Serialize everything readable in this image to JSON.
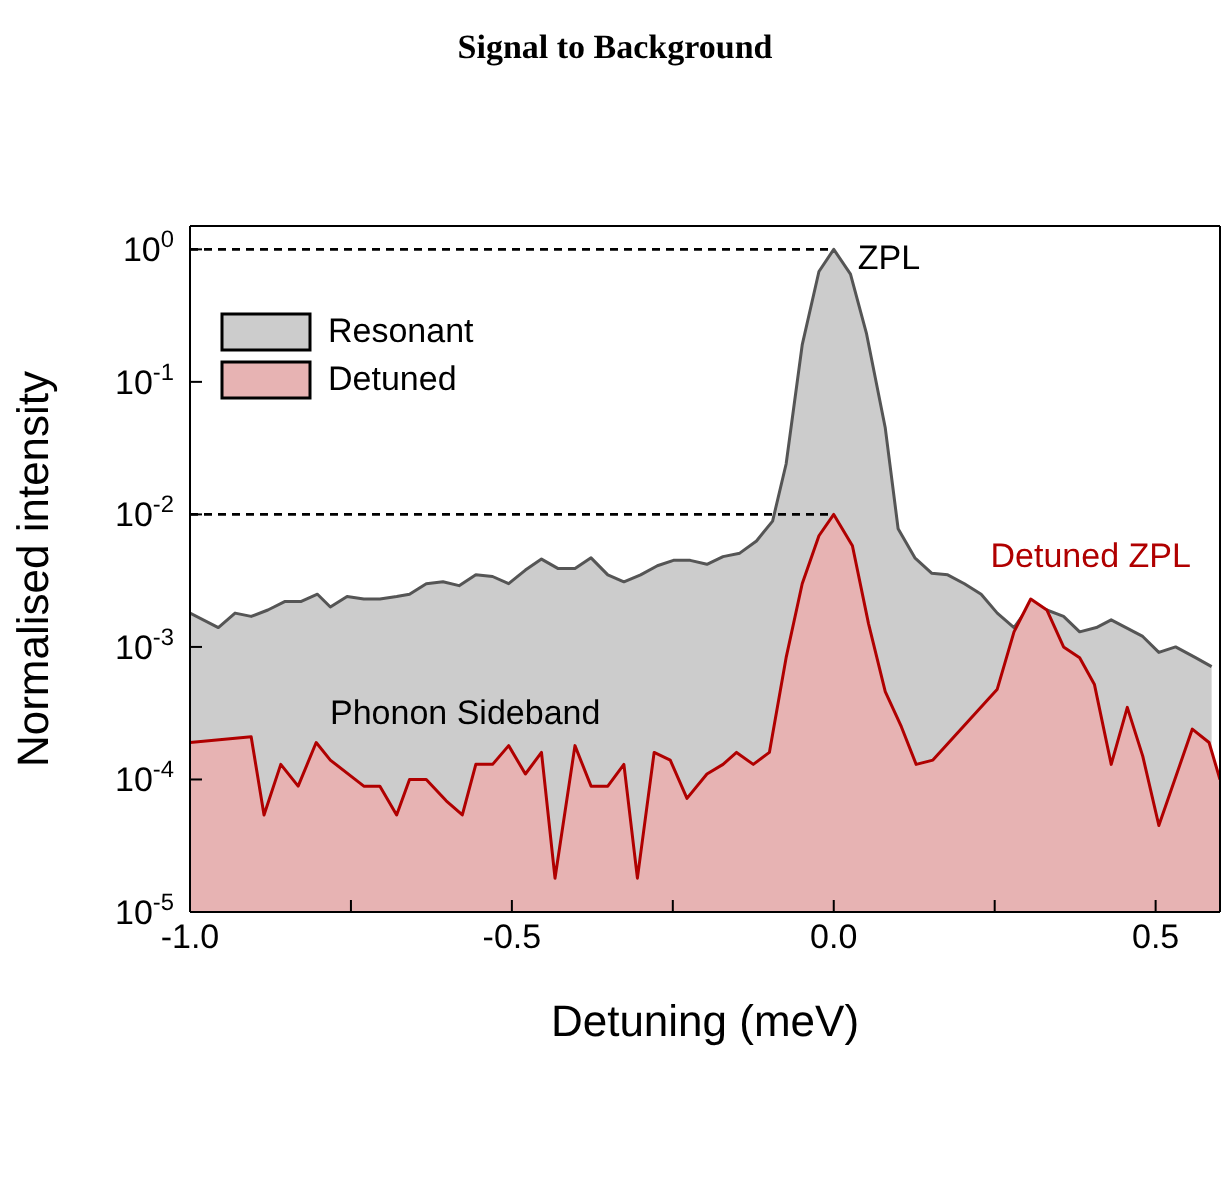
{
  "chart_data": {
    "type": "area",
    "title": "Signal to Background",
    "xlabel": "Detuning (meV)",
    "ylabel": "Normalised intensity",
    "log": "y",
    "legend": "top left",
    "xlim": [
      -1,
      0.6
    ],
    "xticks": [
      {
        "value": -1,
        "label": "-1.0"
      },
      {
        "value": -0.75,
        "label": null
      },
      {
        "value": -0.5,
        "label": "-0.5"
      },
      {
        "value": -0.25,
        "label": null
      },
      {
        "value": 0,
        "label": "0.0"
      },
      {
        "value": 0.25,
        "label": null
      },
      {
        "value": 0.5,
        "label": "0.5"
      }
    ],
    "ylim": [
      1e-05,
      1.5
    ],
    "yticks": [
      {
        "value": 1e-05,
        "label": "10$^{-5}$"
      },
      {
        "value": 0.0001,
        "label": "10$^{-4}$"
      },
      {
        "value": 0.001,
        "label": "10$^{-3}$"
      },
      {
        "value": 0.01,
        "label": "10$^{-2}$"
      },
      {
        "value": 0.1,
        "label": "10$^{-1}$"
      },
      {
        "value": 1,
        "label": "10$^{0}$"
      }
    ],
    "series": [
      {
        "name": "Resonant",
        "color": "#555555",
        "x": [
          -1.0,
          -0.956,
          -0.93,
          -0.905,
          -0.879,
          -0.853,
          -0.828,
          -0.802,
          -0.782,
          -0.756,
          -0.73,
          -0.705,
          -0.679,
          -0.659,
          -0.633,
          -0.607,
          -0.582,
          -0.556,
          -0.53,
          -0.505,
          -0.479,
          -0.454,
          -0.428,
          -0.402,
          -0.377,
          -0.351,
          -0.326,
          -0.3,
          -0.274,
          -0.249,
          -0.223,
          -0.197,
          -0.172,
          -0.146,
          -0.12,
          -0.095,
          -0.074,
          -0.049,
          -0.023,
          0,
          0.026,
          0.051,
          0.08,
          0.1,
          0.126,
          0.152,
          0.177,
          0.203,
          0.229,
          0.254,
          0.28,
          0.306,
          0.331,
          0.357,
          0.382,
          0.408,
          0.431,
          0.454,
          0.48,
          0.505,
          0.531,
          0.562,
          0.587
        ],
        "values": [
          0.0018,
          0.0014,
          0.0018,
          0.0017,
          0.0019,
          0.0022,
          0.0022,
          0.0025,
          0.002,
          0.0024,
          0.0023,
          0.0023,
          0.0024,
          0.0025,
          0.003,
          0.0031,
          0.0029,
          0.0035,
          0.0034,
          0.003,
          0.0038,
          0.0046,
          0.0039,
          0.0039,
          0.0047,
          0.0035,
          0.0031,
          0.0035,
          0.0041,
          0.0045,
          0.0045,
          0.0042,
          0.0048,
          0.0051,
          0.0063,
          0.0089,
          0.024,
          0.19,
          0.68,
          1.0,
          0.65,
          0.23,
          0.045,
          0.0078,
          0.0047,
          0.0036,
          0.0035,
          0.003,
          0.0025,
          0.0018,
          0.0014,
          0.0021,
          0.0019,
          0.0017,
          0.0013,
          0.0014,
          0.0016,
          0.0014,
          0.0012,
          0.00091,
          0.001,
          0.00083,
          0.00071
        ]
      },
      {
        "name": "Detuned",
        "color": "#b00000",
        "x": [
          -1.0,
          -0.905,
          -0.885,
          -0.859,
          -0.832,
          -0.804,
          -0.782,
          -0.73,
          -0.705,
          -0.679,
          -0.659,
          -0.633,
          -0.602,
          -0.577,
          -0.556,
          -0.53,
          -0.505,
          -0.479,
          -0.454,
          -0.433,
          -0.402,
          -0.377,
          -0.351,
          -0.326,
          -0.305,
          -0.279,
          -0.254,
          -0.228,
          -0.197,
          -0.172,
          -0.151,
          -0.125,
          -0.1,
          -0.074,
          -0.049,
          -0.023,
          0,
          0.029,
          0.054,
          0.08,
          0.105,
          0.128,
          0.154,
          0.254,
          0.28,
          0.306,
          0.331,
          0.357,
          0.382,
          0.405,
          0.431,
          0.456,
          0.48,
          0.505,
          0.557,
          0.583,
          0.6
        ],
        "values": [
          0.00019,
          0.00021,
          5.4e-05,
          0.00013,
          8.9e-05,
          0.00019,
          0.00014,
          8.9e-05,
          8.9e-05,
          5.4e-05,
          0.0001,
          0.0001,
          6.9e-05,
          5.4e-05,
          0.00013,
          0.00013,
          0.00018,
          0.00011,
          0.00016,
          1.8e-05,
          0.00018,
          8.9e-05,
          8.9e-05,
          0.00013,
          1.8e-05,
          0.00016,
          0.00014,
          7.2e-05,
          0.00011,
          0.00013,
          0.00016,
          0.00013,
          0.00016,
          0.00083,
          0.003,
          0.0069,
          0.01,
          0.0058,
          0.0015,
          0.00046,
          0.00025,
          0.00013,
          0.00014,
          0.00048,
          0.0013,
          0.0023,
          0.0019,
          0.001,
          0.00083,
          0.00052,
          0.00013,
          0.00035,
          0.00015,
          4.5e-05,
          0.00024,
          0.00019,
          0.0001
        ]
      }
    ],
    "ref_lines": [
      {
        "axis": "y",
        "value": 1,
        "label": null,
        "line_style": "dashed",
        "color": "#000000"
      },
      {
        "axis": "y",
        "value": 0.01,
        "label": null,
        "line_style": "dashed",
        "color": "#000000"
      }
    ],
    "annotations": [
      {
        "text": "ZPL",
        "x": 0,
        "y": 1.0
      },
      "Phonon Sideband",
      {
        "text": "Detuned ZPL",
        "x": 0.306,
        "y": 0.0023
      }
    ]
  }
}
